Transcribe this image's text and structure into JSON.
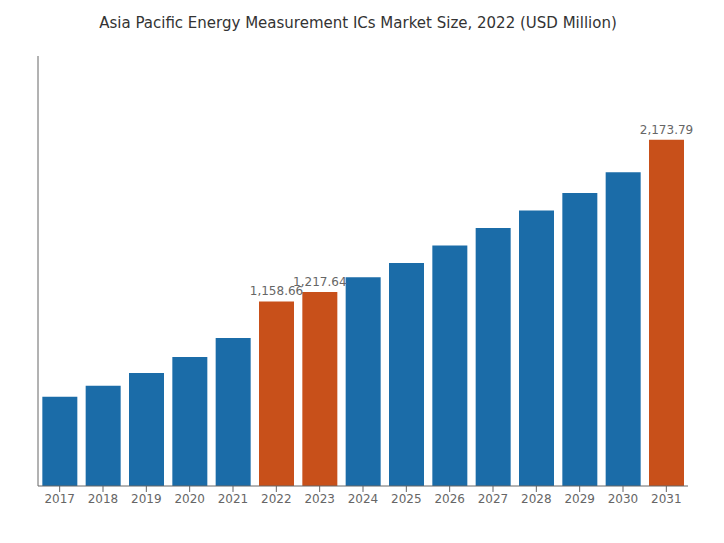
{
  "chart_data": {
    "type": "bar",
    "title": "Asia Pacific Energy Measurement ICs Market Size, 2022 (USD Million)",
    "categories": [
      "2017",
      "2018",
      "2019",
      "2020",
      "2021",
      "2022",
      "2023",
      "2024",
      "2025",
      "2026",
      "2027",
      "2028",
      "2029",
      "2030",
      "2031"
    ],
    "values": [
      560,
      630,
      710,
      810,
      930,
      1158.66,
      1217.64,
      1310,
      1400,
      1510,
      1620,
      1730,
      1840,
      1970,
      2173.79
    ],
    "value_labels": [
      null,
      null,
      null,
      null,
      null,
      "1,158.66",
      "1,217.64",
      null,
      null,
      null,
      null,
      null,
      null,
      null,
      "2,173.79"
    ],
    "data_labels": true,
    "colors": [
      "#1b6ca8",
      "#1b6ca8",
      "#1b6ca8",
      "#1b6ca8",
      "#1b6ca8",
      "#c8501a",
      "#c8501a",
      "#1b6ca8",
      "#1b6ca8",
      "#1b6ca8",
      "#1b6ca8",
      "#1b6ca8",
      "#1b6ca8",
      "#1b6ca8",
      "#c8501a"
    ],
    "ylim": [
      0,
      2700
    ],
    "tick_labels": "x",
    "grid": false
  }
}
